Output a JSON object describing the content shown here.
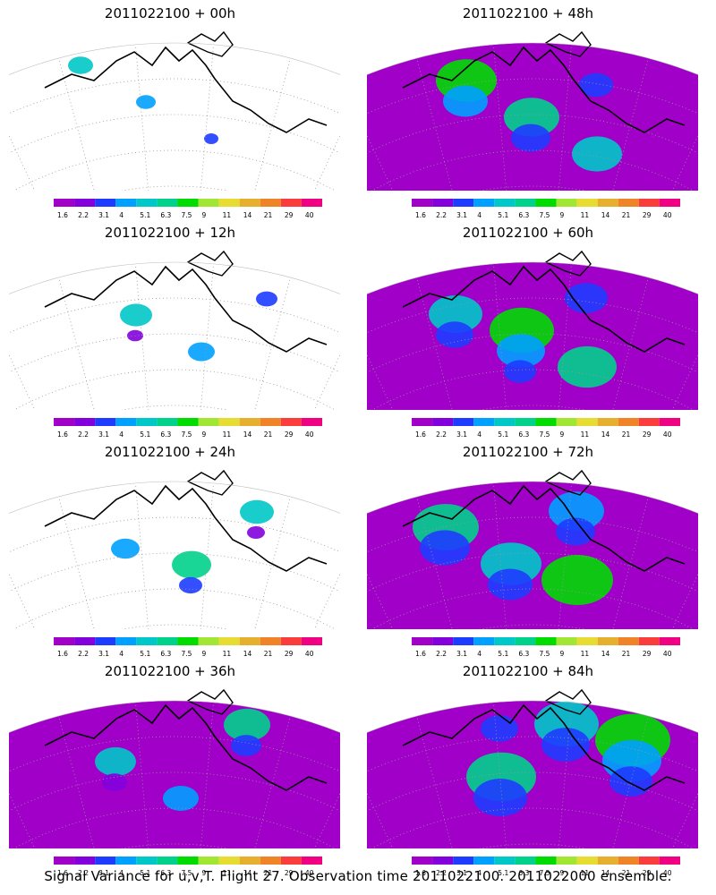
{
  "chart_data": {
    "type": "heatmap",
    "colorbar": {
      "labels": [
        "1.6",
        "2.2",
        "3.1",
        "4",
        "5.1",
        "6.3",
        "7.5",
        "9",
        "11",
        "14",
        "21",
        "29",
        "40"
      ],
      "colors": [
        "#a000c8",
        "#8200dc",
        "#1e3cff",
        "#00a0ff",
        "#00c8c8",
        "#00d28c",
        "#00dc00",
        "#a0e632",
        "#e6dc32",
        "#e6af2d",
        "#f08228",
        "#fa3c3c",
        "#f00082"
      ]
    },
    "panels": [
      {
        "title": "2011022100 + 00h",
        "intensity": 0.05
      },
      {
        "title": "2011022100 + 48h",
        "intensity": 0.55
      },
      {
        "title": "2011022100 + 12h",
        "intensity": 0.15
      },
      {
        "title": "2011022100 + 60h",
        "intensity": 0.6
      },
      {
        "title": "2011022100 + 24h",
        "intensity": 0.25
      },
      {
        "title": "2011022100 + 72h",
        "intensity": 0.7
      },
      {
        "title": "2011022100 + 36h",
        "intensity": 0.35
      },
      {
        "title": "2011022100 + 84h",
        "intensity": 0.75
      }
    ],
    "caption": "Signal Variance for u,v,T. Flight 27. Observation time 2011022100. 2011022000 ensemble."
  }
}
